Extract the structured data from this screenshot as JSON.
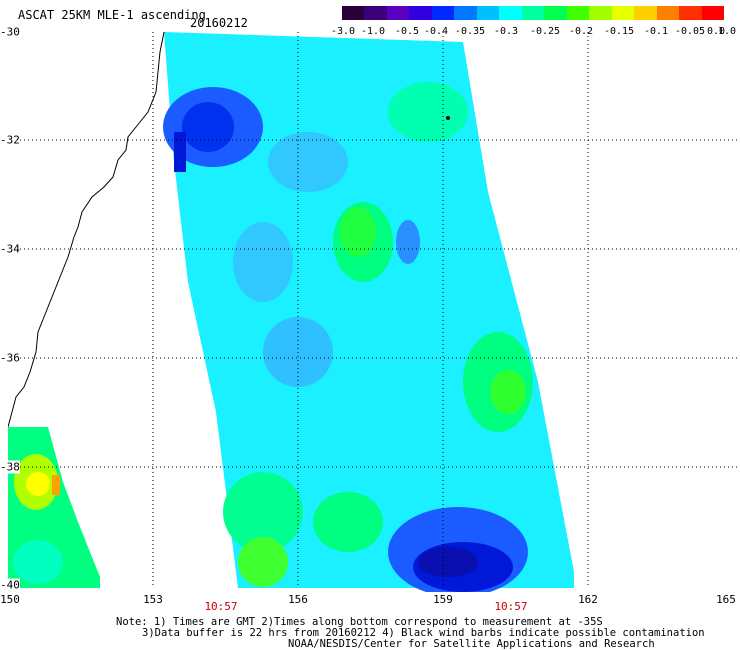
{
  "header": {
    "title": "ASCAT 25KM MLE-1 ascending",
    "date": "20160212"
  },
  "colorbar": {
    "tick_labels": [
      "-3.0",
      "-1.0",
      "-0.5",
      "-0.4",
      "-0.35",
      "-0.3",
      "-0.25",
      "-0.2",
      "-0.15",
      "-0.1",
      "-0.05",
      "0.0",
      "1.0"
    ],
    "colors": [
      "#2a0038",
      "#3c0078",
      "#5a00c0",
      "#3000e0",
      "#0028ff",
      "#0078ff",
      "#00c0ff",
      "#00ffff",
      "#00ffa0",
      "#00ff50",
      "#40ff00",
      "#a0ff00",
      "#e8ff00",
      "#ffd000",
      "#ff8000",
      "#ff3000",
      "#ff0000"
    ]
  },
  "map": {
    "lat_labels": [
      "-30",
      "-32",
      "-34",
      "-36",
      "-38",
      "-40"
    ],
    "lon_labels": [
      "150",
      "153",
      "156",
      "159",
      "162",
      "165"
    ],
    "pass_times": [
      "10:57",
      "10:57"
    ]
  },
  "notes": {
    "line1": "Note: 1) Times are GMT 2)Times along bottom correspond to measurement at -35S",
    "line2": "3)Data buffer is 22 hrs from 20160212 4) Black wind barbs indicate possible contamination",
    "line3": "NOAA/NESDIS/Center for Satellite Applications and Research"
  }
}
